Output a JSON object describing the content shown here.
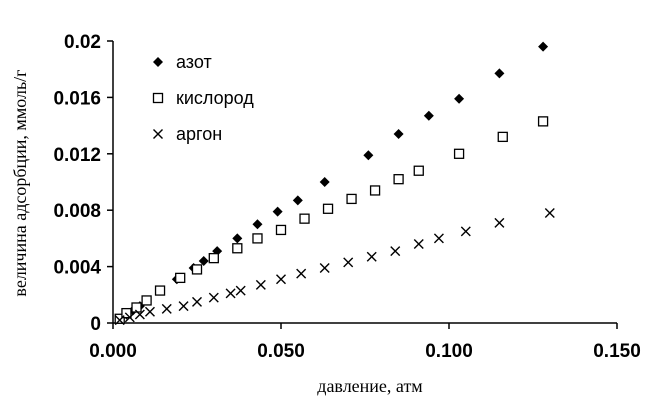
{
  "chart_data": {
    "type": "scatter",
    "xlabel": "давление, атм",
    "ylabel": "величина адсорбции, ммоль/г",
    "xlim": [
      0,
      0.15
    ],
    "ylim": [
      0,
      0.02
    ],
    "x_ticks": [
      "0.000",
      "0.050",
      "0.100",
      "0.150"
    ],
    "y_ticks": [
      "0",
      "0.004",
      "0.008",
      "0.012",
      "0.016",
      "0.02"
    ],
    "x_tick_values": [
      0,
      0.05,
      0.1,
      0.15
    ],
    "y_tick_values": [
      0,
      0.004,
      0.008,
      0.012,
      0.016,
      0.02
    ],
    "grid": false,
    "legend_position": "top-left",
    "series": [
      {
        "name": "азот",
        "marker": "filled-diamond",
        "color": "#000000",
        "points": [
          [
            0.002,
            0.0003
          ],
          [
            0.004,
            0.0006
          ],
          [
            0.006,
            0.0009
          ],
          [
            0.008,
            0.0012
          ],
          [
            0.01,
            0.0016
          ],
          [
            0.014,
            0.0023
          ],
          [
            0.019,
            0.0031
          ],
          [
            0.024,
            0.0039
          ],
          [
            0.027,
            0.0044
          ],
          [
            0.031,
            0.0051
          ],
          [
            0.037,
            0.006
          ],
          [
            0.043,
            0.007
          ],
          [
            0.049,
            0.0079
          ],
          [
            0.055,
            0.0087
          ],
          [
            0.063,
            0.01
          ],
          [
            0.076,
            0.0119
          ],
          [
            0.085,
            0.0134
          ],
          [
            0.094,
            0.0147
          ],
          [
            0.103,
            0.0159
          ],
          [
            0.115,
            0.0177
          ],
          [
            0.128,
            0.0196
          ]
        ]
      },
      {
        "name": "кислород",
        "marker": "open-square",
        "color": "#000000",
        "points": [
          [
            0.002,
            0.0003
          ],
          [
            0.004,
            0.0007
          ],
          [
            0.007,
            0.0011
          ],
          [
            0.01,
            0.0016
          ],
          [
            0.014,
            0.0023
          ],
          [
            0.02,
            0.0032
          ],
          [
            0.025,
            0.0038
          ],
          [
            0.03,
            0.0046
          ],
          [
            0.037,
            0.0053
          ],
          [
            0.043,
            0.006
          ],
          [
            0.05,
            0.0066
          ],
          [
            0.057,
            0.0074
          ],
          [
            0.064,
            0.0081
          ],
          [
            0.071,
            0.0088
          ],
          [
            0.078,
            0.0094
          ],
          [
            0.085,
            0.0102
          ],
          [
            0.091,
            0.0108
          ],
          [
            0.103,
            0.012
          ],
          [
            0.116,
            0.0132
          ],
          [
            0.128,
            0.0143
          ]
        ]
      },
      {
        "name": "аргон",
        "marker": "x",
        "color": "#000000",
        "points": [
          [
            0.002,
            0.0002
          ],
          [
            0.005,
            0.0004
          ],
          [
            0.008,
            0.0006
          ],
          [
            0.011,
            0.0008
          ],
          [
            0.016,
            0.001
          ],
          [
            0.021,
            0.0012
          ],
          [
            0.025,
            0.0015
          ],
          [
            0.03,
            0.0018
          ],
          [
            0.035,
            0.0021
          ],
          [
            0.038,
            0.0023
          ],
          [
            0.044,
            0.0027
          ],
          [
            0.05,
            0.0031
          ],
          [
            0.056,
            0.0035
          ],
          [
            0.063,
            0.0039
          ],
          [
            0.07,
            0.0043
          ],
          [
            0.077,
            0.0047
          ],
          [
            0.084,
            0.0051
          ],
          [
            0.091,
            0.0056
          ],
          [
            0.097,
            0.006
          ],
          [
            0.105,
            0.0065
          ],
          [
            0.115,
            0.0071
          ],
          [
            0.13,
            0.0078
          ]
        ]
      }
    ]
  }
}
